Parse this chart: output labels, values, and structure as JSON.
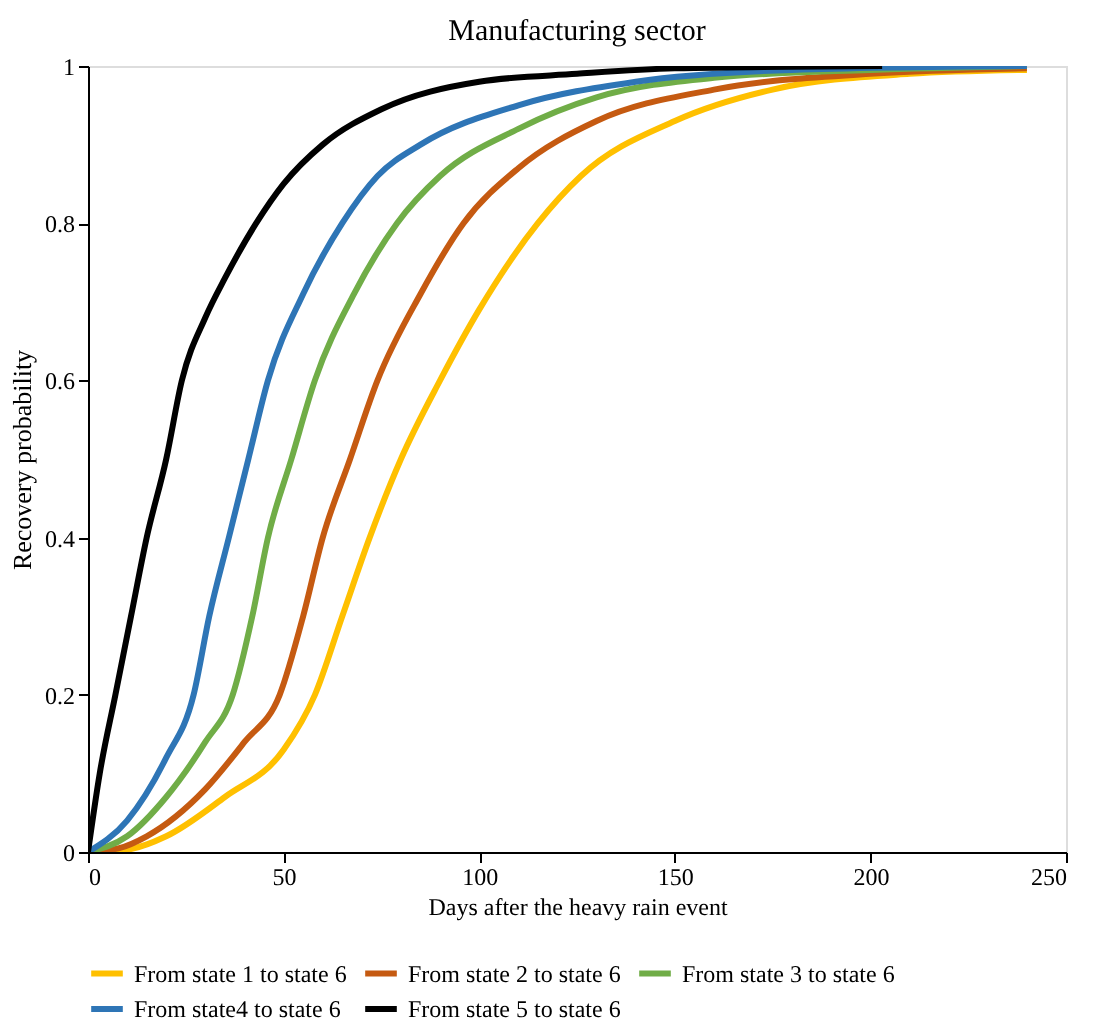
{
  "chart_data": {
    "type": "line",
    "title": "Manufacturing sector",
    "xlabel": "Days after the heavy rain event",
    "ylabel": "Recovery probability",
    "xlim": [
      0,
      250
    ],
    "xticks": [
      0,
      50,
      100,
      150,
      200,
      250
    ],
    "ylim": [
      0,
      1
    ],
    "yticks": [
      0,
      0.2,
      0.4,
      0.6,
      0.8,
      1
    ],
    "grid": false,
    "legend": "bottom",
    "marker": "none",
    "line_style": "solid",
    "series": [
      {
        "name": "From state 1 to state 6",
        "color": "#ffc000",
        "x": [
          0,
          10,
          20,
          35,
          50,
          58,
          65,
          72,
          80,
          90,
          100,
          115,
          126,
          150,
          175,
          210,
          240
        ],
        "values": [
          0,
          0.003,
          0.02,
          0.07,
          0.13,
          0.2,
          0.3,
          0.4,
          0.5,
          0.6,
          0.69,
          0.8,
          0.86,
          0.93,
          0.97,
          0.99,
          0.995
        ]
      },
      {
        "name": "From state 2 to state 6",
        "color": "#c55a11",
        "x": [
          0,
          8,
          15,
          30,
          40,
          49,
          55,
          60,
          67,
          74,
          85,
          96,
          110,
          130,
          160,
          200,
          240
        ],
        "values": [
          0,
          0.005,
          0.02,
          0.08,
          0.14,
          0.2,
          0.3,
          0.4,
          0.5,
          0.6,
          0.71,
          0.8,
          0.87,
          0.93,
          0.97,
          0.99,
          0.997
        ]
      },
      {
        "name": "From state 3 to state 6",
        "color": "#70ad47",
        "x": [
          0,
          10,
          20,
          30,
          37,
          42,
          46,
          52,
          58,
          68,
          79,
          90,
          110,
          130,
          160,
          200,
          240
        ],
        "values": [
          0,
          0.02,
          0.07,
          0.14,
          0.2,
          0.3,
          0.4,
          0.5,
          0.6,
          0.71,
          0.8,
          0.86,
          0.92,
          0.96,
          0.985,
          0.995,
          1
        ]
      },
      {
        "name": "From state4 to state 6",
        "color": "#2e75b6",
        "x": [
          0,
          10,
          20,
          27,
          31,
          36,
          41,
          46,
          55,
          65,
          74,
          85,
          110,
          140,
          180,
          240
        ],
        "values": [
          0,
          0.04,
          0.12,
          0.2,
          0.3,
          0.4,
          0.5,
          0.6,
          0.71,
          0.8,
          0.86,
          0.9,
          0.95,
          0.98,
          0.995,
          1
        ]
      },
      {
        "name": "From state 5 to state 6",
        "color": "#000000",
        "x": [
          0,
          3,
          7,
          11,
          15,
          20,
          24,
          30,
          35,
          43,
          50,
          60,
          75,
          100,
          125,
          150,
          203
        ],
        "values": [
          0,
          0.1,
          0.2,
          0.3,
          0.4,
          0.5,
          0.6,
          0.68,
          0.73,
          0.8,
          0.85,
          0.9,
          0.945,
          0.98,
          0.99,
          0.997,
          1
        ]
      }
    ]
  }
}
